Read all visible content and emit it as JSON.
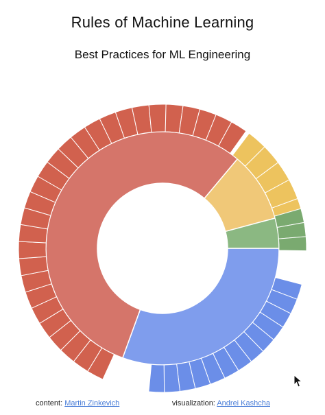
{
  "header": {
    "title": "Rules of Machine Learning",
    "subtitle": "Best Practices for ML Engineering"
  },
  "footer": {
    "content_label": "content:",
    "content_link": "Martin Zinkevich",
    "viz_label": "visualization:",
    "viz_link": "Andrei Kashcha"
  },
  "chart_data": {
    "type": "sunburst",
    "groups": [
      {
        "color": "#6b8ee8",
        "middle_color": "#7f9ded",
        "middle_span": 110,
        "outer_leaves": 13,
        "outer_span": 81
      },
      {
        "color": "#d1614e",
        "middle_color": "#d5756a",
        "middle_span": 200,
        "outer_leaves": 28,
        "outer_span": 191
      },
      {
        "color": "#edc35e",
        "middle_color": "#f0c878",
        "middle_span": 35,
        "outer_leaves": 5,
        "outer_span": 41
      },
      {
        "color": "#7aaa70",
        "middle_color": "#8bb882",
        "middle_span": 15,
        "outer_leaves": 3,
        "outer_span": 17
      }
    ]
  }
}
